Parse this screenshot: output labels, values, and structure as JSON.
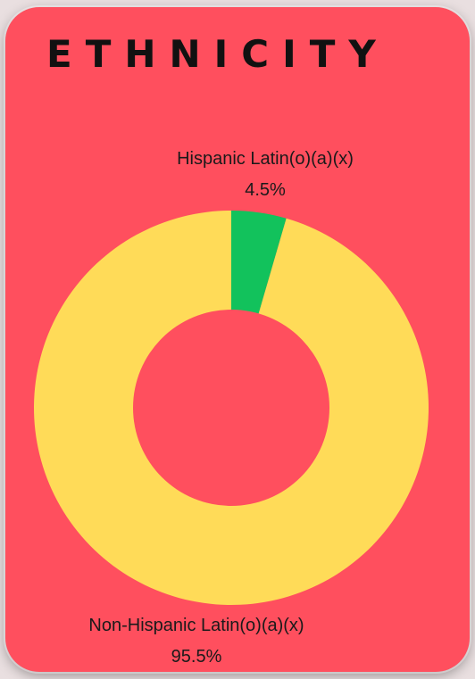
{
  "chart_data": {
    "type": "pie",
    "title": "ETHNICITY",
    "categories": [
      "Hispanic Latin(o)(a)(x)",
      "Non-Hispanic Latin(o)(a)(x)"
    ],
    "values": [
      4.5,
      95.5
    ],
    "value_labels": [
      "4.5%",
      "95.5%"
    ],
    "colors": [
      "#12c25c",
      "#ffdb58"
    ],
    "donut": true
  },
  "colors": {
    "card_background": "#ff4f5e",
    "title_text": "#111111"
  }
}
